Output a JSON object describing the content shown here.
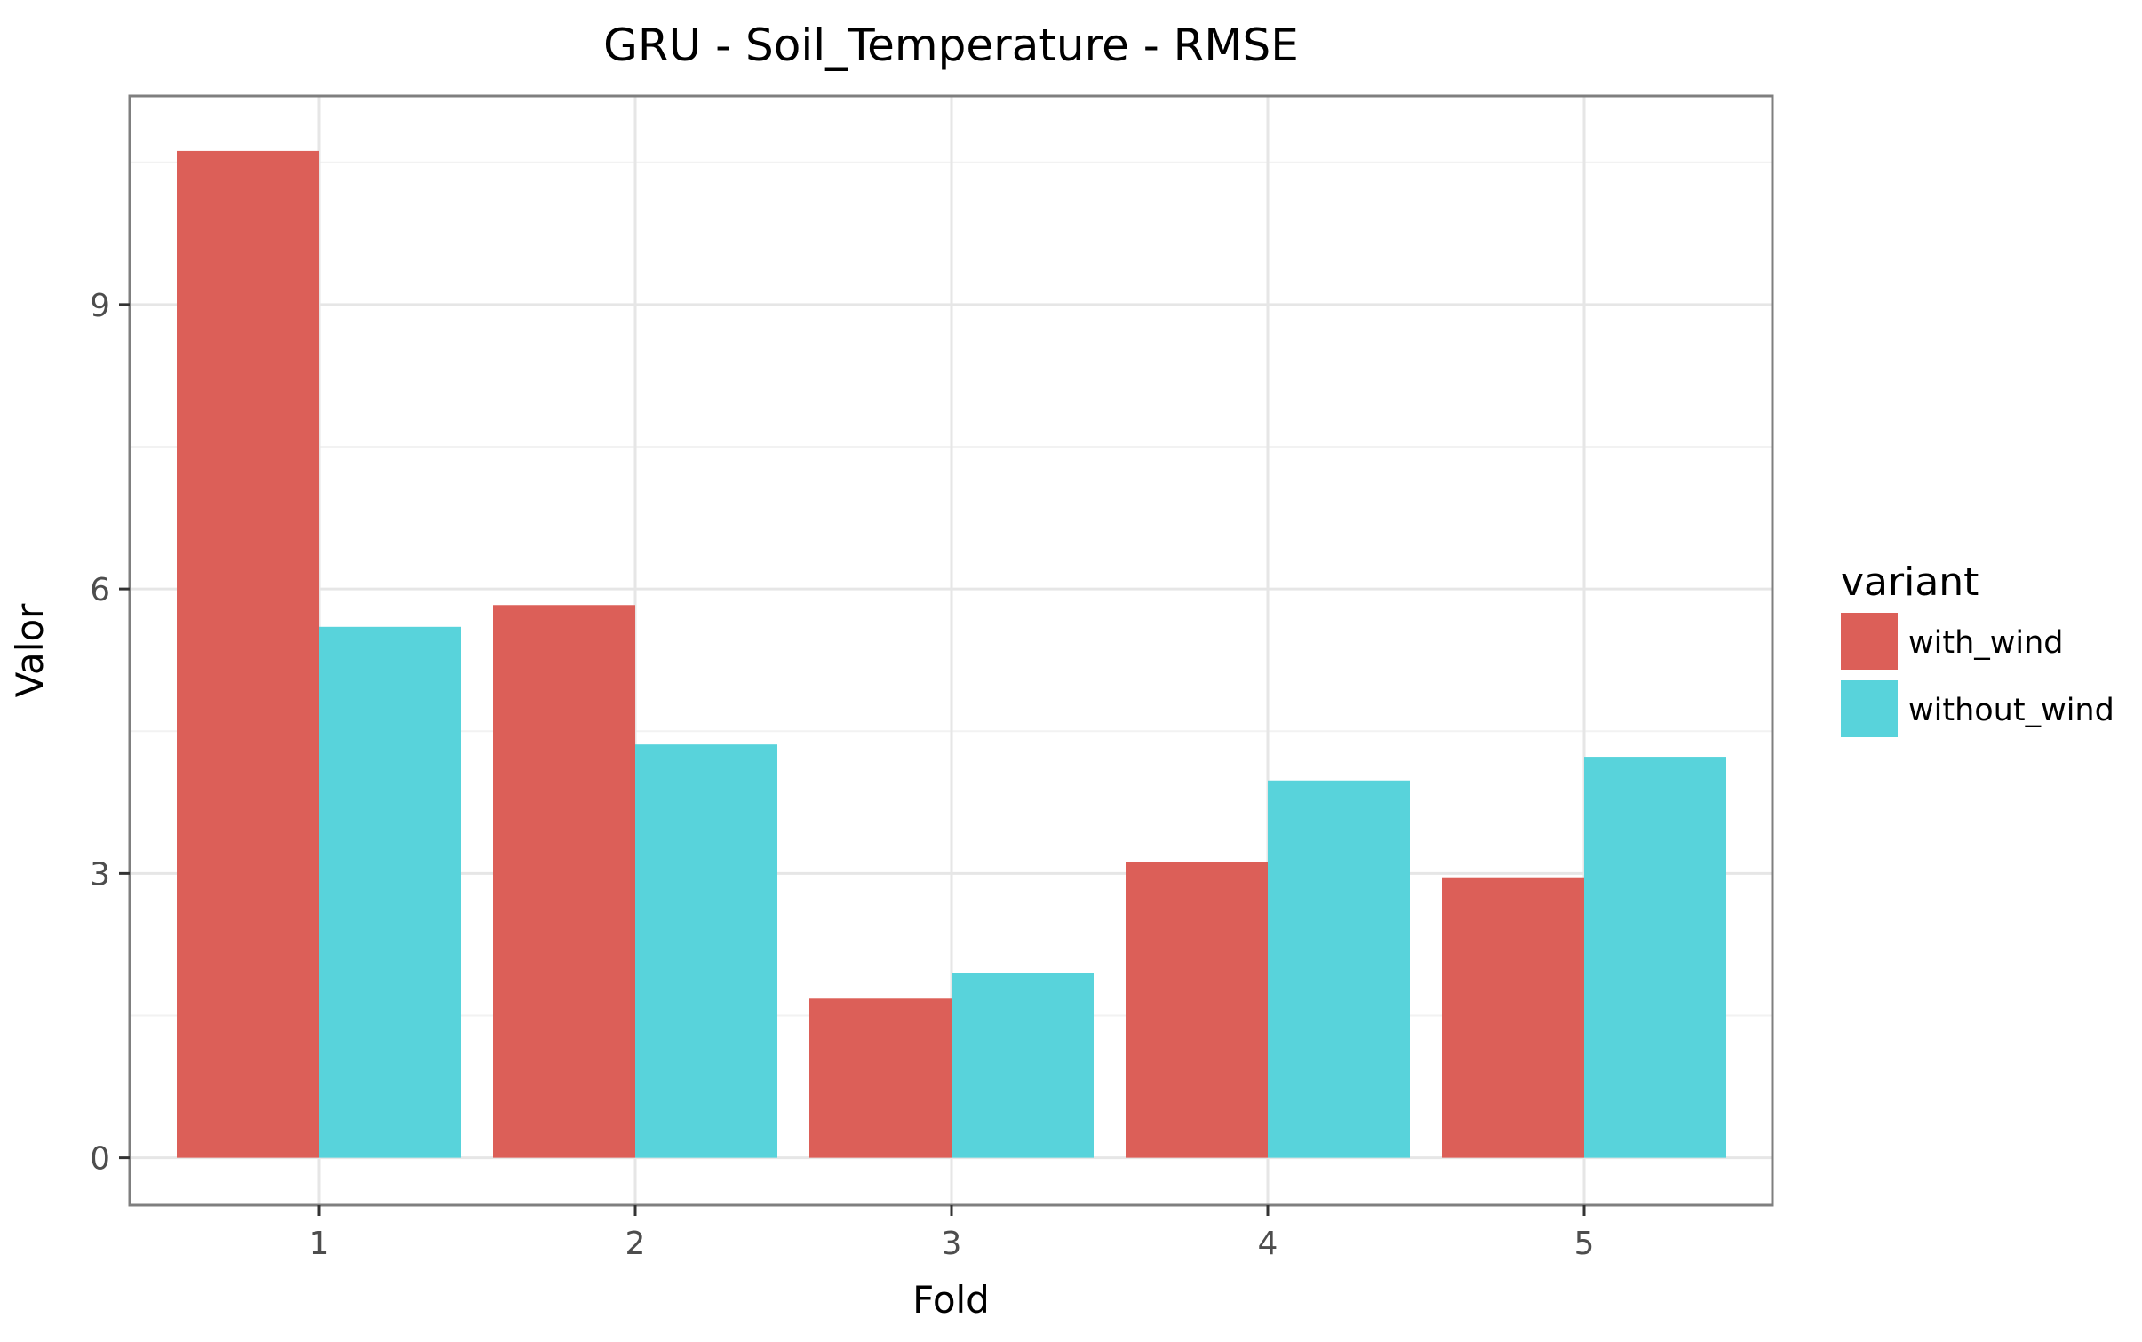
{
  "chart_data": {
    "type": "bar",
    "title": "GRU - Soil_Temperature - RMSE",
    "xlabel": "Fold",
    "ylabel": "Valor",
    "categories": [
      "1",
      "2",
      "3",
      "4",
      "5"
    ],
    "series": [
      {
        "name": "with_wind",
        "color": "#DC5F58",
        "values": [
          10.62,
          5.83,
          1.68,
          3.12,
          2.95
        ]
      },
      {
        "name": "without_wind",
        "color": "#58D3DB",
        "values": [
          5.6,
          4.36,
          1.95,
          3.98,
          4.23
        ]
      }
    ],
    "yticks": [
      0,
      3,
      6,
      9
    ],
    "ylim": [
      -0.5,
      11.2
    ],
    "grid": true,
    "legend": {
      "title": "variant",
      "position": "right"
    }
  }
}
